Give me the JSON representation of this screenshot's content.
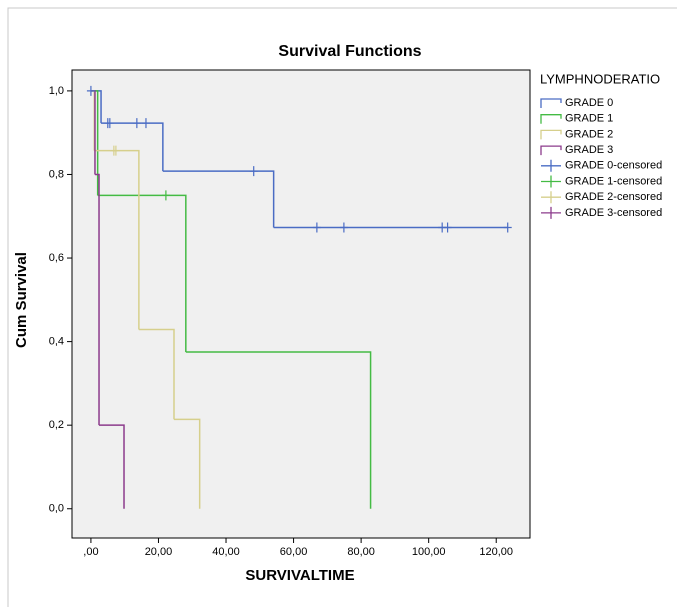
{
  "chart_data": {
    "type": "step",
    "title": "Survival Functions",
    "x_label": "SURVIVALTIME",
    "y_label": "Cum Survival",
    "legend_title": "LYMPHNODERATIO",
    "legend_position": "right",
    "xlim": [
      -5.6,
      130
    ],
    "ylim": [
      -0.07,
      1.05
    ],
    "xticks": [
      {
        "value": 0,
        "label": ",00"
      },
      {
        "value": 20,
        "label": "20,00"
      },
      {
        "value": 40,
        "label": "40,00"
      },
      {
        "value": 60,
        "label": "60,00"
      },
      {
        "value": 80,
        "label": "80,00"
      },
      {
        "value": 100,
        "label": "100,00"
      },
      {
        "value": 120,
        "label": "120,00"
      }
    ],
    "yticks": [
      {
        "value": 0,
        "label": "0,0"
      },
      {
        "value": 0.2,
        "label": "0,2"
      },
      {
        "value": 0.4,
        "label": "0,4"
      },
      {
        "value": 0.6,
        "label": "0,6"
      },
      {
        "value": 0.8,
        "label": "0,8"
      },
      {
        "value": 1.0,
        "label": "1,0"
      }
    ],
    "series": [
      {
        "name": "GRADE 0",
        "style": "step",
        "color": "#4a6cc4",
        "x": [
          0,
          3,
          21.3,
          54.1,
          123.4
        ],
        "values": [
          1,
          0.923,
          0.808,
          0.673,
          0.673
        ]
      },
      {
        "name": "GRADE 1",
        "style": "step",
        "color": "#44bb44",
        "x": [
          0,
          2,
          28.1,
          82.8
        ],
        "values": [
          1,
          0.75,
          0.375,
          0
        ]
      },
      {
        "name": "GRADE 2",
        "style": "step",
        "color": "#d6cf8c",
        "x": [
          0,
          1,
          14.2,
          24.6,
          32.2
        ],
        "values": [
          1,
          0.857,
          0.429,
          0.214,
          0
        ]
      },
      {
        "name": "GRADE 3",
        "style": "step",
        "color": "#8c3b8c",
        "x": [
          0,
          1.2,
          2.4,
          9.8
        ],
        "values": [
          1,
          0.8,
          0.2,
          0
        ]
      },
      {
        "name": "GRADE 0-censored",
        "style": "censored",
        "color": "#4a6cc4",
        "x": [
          0,
          5,
          5.6,
          13.6,
          16.3,
          48.2,
          66.9,
          74.9,
          104,
          105.6,
          123.4
        ],
        "values": [
          1,
          0.923,
          0.923,
          0.923,
          0.923,
          0.808,
          0.673,
          0.673,
          0.673,
          0.673,
          0.673
        ]
      },
      {
        "name": "GRADE 1-censored",
        "style": "censored",
        "color": "#44bb44",
        "x": [
          22.2
        ],
        "values": [
          0.75
        ]
      },
      {
        "name": "GRADE 2-censored",
        "style": "censored",
        "color": "#d6cf8c",
        "x": [
          6.8,
          7.4
        ],
        "values": [
          0.857,
          0.857
        ]
      },
      {
        "name": "GRADE 3-censored",
        "style": "censored",
        "color": "#8c3b8c",
        "x": [],
        "values": []
      }
    ]
  }
}
